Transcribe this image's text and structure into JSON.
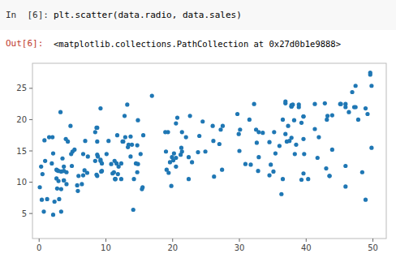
{
  "chart_data": {
    "type": "scatter",
    "annotations": [
      "In  [6]:",
      "plt.scatter(data.radio, data.sales)",
      "Out[6]:",
      "<matplotlib.collections.PathCollection at 0x27d0b1e9888>"
    ],
    "x": [
      37.8,
      39.3,
      45.9,
      41.3,
      10.8,
      48.9,
      32.8,
      19.6,
      2.1,
      2.6,
      5.8,
      24.0,
      15.5,
      4.1,
      4.7,
      13.2,
      3.7,
      46.9,
      6.8,
      36.9,
      22.9,
      32.9,
      43.9,
      49.8,
      1.5,
      9.3,
      19.4,
      22.4,
      34.7,
      43.1,
      29.7,
      37.5,
      37.8,
      43.0,
      35.1,
      16.9,
      37.8,
      41.9,
      8.7,
      27.2,
      39.6,
      38.2,
      3.2,
      11.7,
      36.9,
      5.0,
      8.4,
      14.7,
      35.4,
      45.9,
      0.7,
      12.9,
      2.9,
      45.9,
      19.0,
      21.4,
      21.3,
      0.8,
      27.4,
      3.3,
      22.0,
      11.8,
      0.9,
      48.9,
      36.3,
      7.3,
      8.6,
      3.0,
      19.8,
      14.1,
      31.7,
      38.9,
      2.1,
      9.4,
      30.0,
      11.0,
      6.6,
      13.9,
      13.4,
      23.8,
      9.2,
      2.0,
      4.1,
      3.7,
      20.5,
      8.4,
      29.9,
      0.3,
      39.6,
      20.7,
      27.5,
      22.4,
      8.7,
      36.9,
      37.8,
      36.0,
      24.9,
      41.7,
      45.2,
      49.6,
      0.5,
      20.2,
      32.9,
      32.2,
      20.5,
      34.5,
      32.5,
      5.3,
      3.7,
      46.4,
      13.7,
      24.5,
      6.9,
      33.5,
      43.5,
      3.7,
      49.8,
      1.2,
      9.2,
      21.4,
      13.7,
      3.3,
      14.7,
      26.1,
      5.9,
      1.9,
      8.7,
      11.4,
      3.5,
      11.3,
      20.1,
      15.4,
      13.3,
      22.6,
      38.0,
      39.6,
      32.6,
      36.5,
      11.6,
      10.4,
      6.6,
      39.7,
      12.8,
      36.5,
      4.3,
      8.6,
      2.7,
      9.4,
      34.5,
      6.4,
      4.0,
      2.6,
      9.2,
      18.9,
      38.9,
      40.3,
      11.9,
      19.3,
      45.1,
      49.2,
      43.9,
      26.2,
      14.8,
      30.9,
      41.3,
      47.4,
      20.5,
      15.2,
      2.9,
      43.2,
      47.2,
      48.4,
      39.3,
      21.2,
      31.5,
      14.8,
      27.0,
      3.3,
      7.2,
      12.5,
      45.9,
      43.5,
      38.3,
      42.8,
      37.3,
      11.2,
      38.5,
      39.6,
      10.1,
      30.1,
      11.4,
      19.1,
      15.6,
      12.3,
      8.8,
      4.9,
      26.0,
      0.4,
      2.3,
      49.6,
      37.1,
      47.8,
      8.7,
      14.5,
      19.9,
      2.7,
      12.3,
      35.2,
      5.7,
      14.2,
      0.1,
      4.8,
      11.4,
      12.6,
      47.4
    ],
    "values": [
      22.1,
      10.4,
      9.3,
      18.5,
      12.9,
      7.2,
      11.8,
      13.2,
      4.8,
      10.6,
      8.6,
      17.4,
      9.2,
      9.7,
      19.0,
      22.4,
      12.5,
      24.4,
      11.9,
      22.6,
      13.2,
      14.0,
      20.7,
      15.5,
      17.2,
      11.7,
      11.5,
      14.0,
      12.8,
      20.0,
      20.9,
      16.6,
      17.1,
      12.2,
      11.7,
      23.8,
      22.1,
      17.2,
      18.7,
      18.4,
      16.9,
      19.9,
      21.2,
      17.5,
      22.9,
      14.9,
      18.0,
      15.9,
      14.6,
      22.0,
      5.3,
      17.2,
      11.8,
      12.6,
      14.9,
      14.9,
      15.5,
      16.7,
      12.0,
      5.3,
      17.2,
      11.3,
      13.4,
      21.8,
      8.1,
      14.1,
      11.2,
      7.3,
      9.4,
      5.6,
      12.8,
      22.4,
      14.6,
      11.8,
      15.0,
      11.4,
      11.1,
      16.0,
      16.0,
      14.8,
      13.4,
      17.2,
      11.6,
      10.3,
      13.9,
      13.4,
      17.7,
      12.5,
      11.4,
      20.3,
      19.0,
      10.5,
      16.5,
      17.7,
      22.3,
      15.8,
      14.9,
      13.9,
      22.5,
      27.2,
      11.3,
      14.6,
      18.0,
      22.5,
      19.4,
      11.1,
      18.4,
      15.2,
      10.3,
      21.2,
      14.1,
      19.7,
      16.6,
      17.9,
      11.0,
      11.8,
      25.4,
      7.3,
      13.6,
      18.0,
      17.3,
      11.7,
      11.6,
      16.6,
      11.0,
      13.0,
      14.4,
      10.5,
      13.8,
      13.4,
      13.5,
      8.9,
      15.6,
      20.6,
      22.4,
      20.5,
      16.3,
      10.5,
      13.0,
      16.6,
      14.5,
      14.5,
      20.6,
      20.0,
      16.5,
      18.7,
      11.9,
      13.0,
      16.4,
      9.7,
      16.9,
      12.0,
      21.8,
      18.0,
      22.0,
      10.5,
      12.5,
      18.0,
      22.5,
      20.9,
      15.2,
      10.9,
      19.9,
      12.9,
      22.5,
      25.4,
      12.5,
      14.5,
      10.2,
      20.6,
      22.0,
      11.6,
      19.5,
      14.4,
      20.0,
      12.9,
      16.1,
      8.9,
      11.5,
      16.5,
      22.5,
      11.0,
      14.5,
      22.6,
      19.0,
      11.6,
      16.0,
      20.5,
      14.5,
      18.4,
      10.5,
      12.0,
      17.5,
      10.5,
      14.1,
      12.6,
      19.0,
      7.2,
      6.9,
      27.5,
      16.5,
      20.0,
      11.0,
      13.0,
      14.0,
      9.0,
      13.0,
      18.0,
      9.5,
      10.5,
      9.2,
      14.5,
      10.5,
      16.5,
      22.0
    ],
    "color": "#1f77b4",
    "xlim": [
      -1,
      52
    ],
    "ylim": [
      1,
      29
    ],
    "xticks": [
      0,
      10,
      20,
      30,
      40,
      50
    ],
    "yticks": [
      5,
      10,
      15,
      20,
      25
    ]
  }
}
